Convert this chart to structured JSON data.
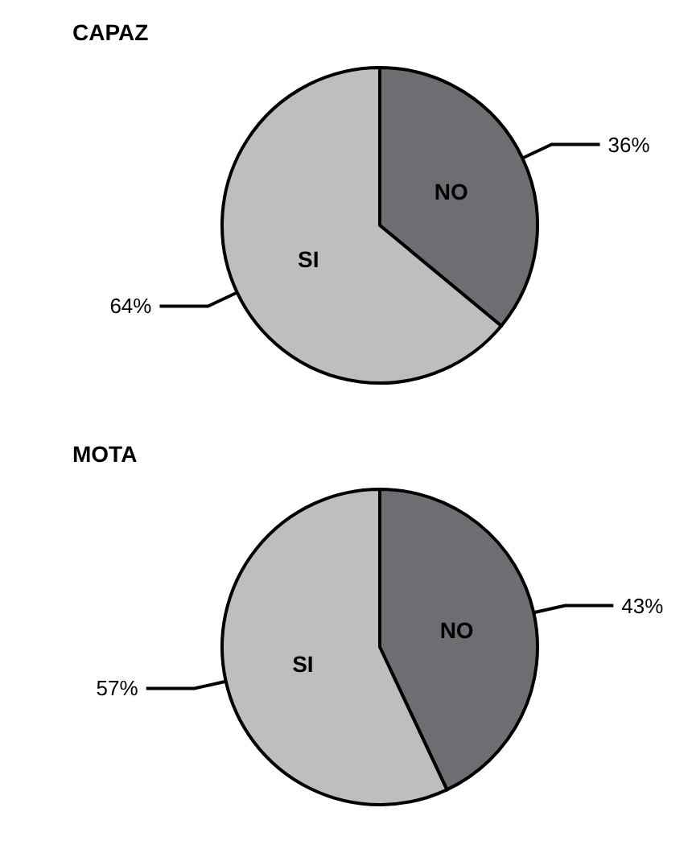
{
  "chart_data": [
    {
      "type": "pie",
      "title": "CAPAZ",
      "categories": [
        "NO",
        "SI"
      ],
      "values": [
        36,
        64
      ],
      "colors": [
        "#6d6e71",
        "#bcbec0"
      ],
      "value_labels": [
        "36%",
        "64%"
      ]
    },
    {
      "type": "pie",
      "title": "MOTA",
      "categories": [
        "NO",
        "SI"
      ],
      "values": [
        43,
        57
      ],
      "colors": [
        "#6d6e71",
        "#bcbec0"
      ],
      "value_labels": [
        "43%",
        "57%"
      ]
    }
  ]
}
